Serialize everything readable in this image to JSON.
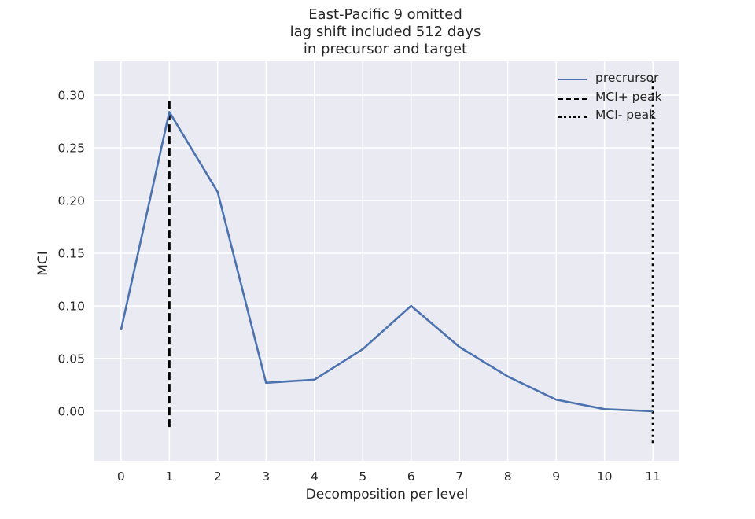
{
  "chart_data": {
    "type": "line",
    "title_lines": [
      "East-Pacific 9 omitted",
      "lag shift included 512 days",
      "in precursor and target"
    ],
    "xlabel": "Decomposition per level",
    "ylabel": "MCI",
    "x": [
      0,
      1,
      2,
      3,
      4,
      5,
      6,
      7,
      8,
      9,
      10,
      11
    ],
    "xticks": [
      "0",
      "1",
      "2",
      "3",
      "4",
      "5",
      "6",
      "7",
      "8",
      "9",
      "10",
      "11"
    ],
    "yticks": [
      "0.00",
      "0.05",
      "0.10",
      "0.15",
      "0.20",
      "0.25",
      "0.30"
    ],
    "ytick_values": [
      0.0,
      0.05,
      0.1,
      0.15,
      0.2,
      0.25,
      0.3
    ],
    "xlim": [
      -0.55,
      11.55
    ],
    "ylim": [
      -0.047,
      0.332
    ],
    "grid": true,
    "legend_position": "top-right",
    "series": [
      {
        "name": "precrursor",
        "color": "#4c72b0",
        "values": [
          0.077,
          0.284,
          0.208,
          0.027,
          0.03,
          0.059,
          0.1,
          0.061,
          0.033,
          0.011,
          0.002,
          0.0
        ]
      }
    ],
    "vlines": [
      {
        "name": "MCI+ peak",
        "x": 1,
        "ymin": -0.015,
        "ymax": 0.298,
        "style": "dashed",
        "color": "#000000"
      },
      {
        "name": "MCI- peak",
        "x": 11,
        "ymin": -0.03,
        "ymax": 0.315,
        "style": "dotted",
        "color": "#000000"
      }
    ],
    "colors": {
      "plot_background": "#eaeaf2",
      "grid": "#ffffff",
      "text": "#262626"
    }
  }
}
